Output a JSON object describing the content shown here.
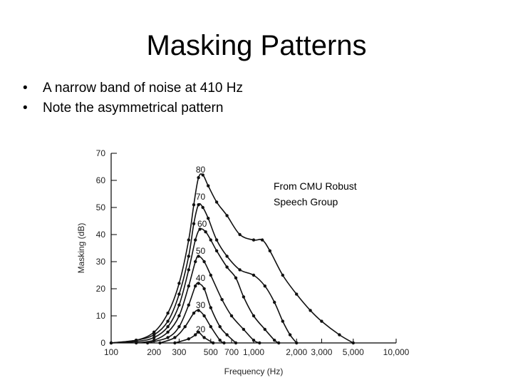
{
  "slide": {
    "title": "Masking Patterns",
    "bullets": [
      "A narrow band of noise at 410 Hz",
      "Note the asymmetrical pattern"
    ],
    "credit_lines": [
      "From CMU Robust",
      "Speech Group"
    ]
  },
  "chart_data": {
    "type": "line",
    "xlabel": "Frequency (Hz)",
    "ylabel": "Masking (dB)",
    "x_scale": "log",
    "xlim": [
      100,
      10000
    ],
    "ylim": [
      0,
      70
    ],
    "x_ticks": [
      100,
      200,
      300,
      500,
      700,
      1000,
      2000,
      3000,
      5000,
      10000
    ],
    "x_tick_labels": [
      "100",
      "200",
      "300",
      "500",
      "700",
      "1,000",
      "2,000",
      "3,000",
      "5,000",
      "10,000"
    ],
    "y_ticks": [
      0,
      10,
      20,
      30,
      40,
      50,
      60,
      70
    ],
    "y_tick_labels": [
      "0",
      "10",
      "20",
      "30",
      "40",
      "50",
      "60",
      "70"
    ],
    "grid": false,
    "series": [
      {
        "name": "80",
        "points": [
          [
            100,
            0
          ],
          [
            150,
            1
          ],
          [
            200,
            4
          ],
          [
            250,
            11
          ],
          [
            300,
            22
          ],
          [
            350,
            38
          ],
          [
            380,
            51
          ],
          [
            410,
            61
          ],
          [
            440,
            62
          ],
          [
            480,
            58
          ],
          [
            550,
            52
          ],
          [
            650,
            47
          ],
          [
            800,
            40
          ],
          [
            1000,
            38
          ],
          [
            1150,
            38
          ],
          [
            1300,
            34
          ],
          [
            1600,
            25
          ],
          [
            2000,
            18
          ],
          [
            2500,
            12
          ],
          [
            3000,
            8
          ],
          [
            4000,
            3
          ],
          [
            5000,
            0
          ]
        ]
      },
      {
        "name": "70",
        "points": [
          [
            100,
            0
          ],
          [
            150,
            1
          ],
          [
            200,
            3
          ],
          [
            250,
            8
          ],
          [
            300,
            18
          ],
          [
            350,
            32
          ],
          [
            380,
            44
          ],
          [
            410,
            51
          ],
          [
            440,
            50
          ],
          [
            480,
            46
          ],
          [
            550,
            38
          ],
          [
            650,
            32
          ],
          [
            800,
            27
          ],
          [
            1000,
            25
          ],
          [
            1200,
            21
          ],
          [
            1400,
            15
          ],
          [
            1600,
            8
          ],
          [
            1800,
            3
          ],
          [
            2000,
            0
          ]
        ]
      },
      {
        "name": "60",
        "points": [
          [
            100,
            0
          ],
          [
            150,
            0.5
          ],
          [
            200,
            2
          ],
          [
            250,
            6
          ],
          [
            300,
            14
          ],
          [
            350,
            27
          ],
          [
            390,
            38
          ],
          [
            420,
            42
          ],
          [
            460,
            41
          ],
          [
            500,
            38
          ],
          [
            550,
            34
          ],
          [
            650,
            28
          ],
          [
            750,
            24
          ],
          [
            850,
            17
          ],
          [
            1000,
            10
          ],
          [
            1200,
            5
          ],
          [
            1400,
            1
          ],
          [
            1500,
            0
          ]
        ]
      },
      {
        "name": "50",
        "points": [
          [
            150,
            0
          ],
          [
            200,
            1
          ],
          [
            250,
            4
          ],
          [
            300,
            10
          ],
          [
            350,
            21
          ],
          [
            390,
            30
          ],
          [
            410,
            32
          ],
          [
            450,
            30
          ],
          [
            500,
            25
          ],
          [
            600,
            16
          ],
          [
            700,
            10
          ],
          [
            850,
            5
          ],
          [
            1000,
            1
          ],
          [
            1100,
            0
          ]
        ]
      },
      {
        "name": "40",
        "points": [
          [
            180,
            0
          ],
          [
            250,
            2
          ],
          [
            300,
            6
          ],
          [
            350,
            14
          ],
          [
            390,
            21
          ],
          [
            410,
            22
          ],
          [
            450,
            20
          ],
          [
            500,
            13
          ],
          [
            580,
            6
          ],
          [
            650,
            3
          ],
          [
            750,
            0
          ]
        ]
      },
      {
        "name": "30",
        "points": [
          [
            220,
            0
          ],
          [
            280,
            2
          ],
          [
            330,
            6
          ],
          [
            380,
            11
          ],
          [
            410,
            12
          ],
          [
            450,
            10
          ],
          [
            500,
            6
          ],
          [
            580,
            1
          ],
          [
            620,
            0
          ]
        ]
      },
      {
        "name": "20",
        "points": [
          [
            280,
            0
          ],
          [
            350,
            1.5
          ],
          [
            390,
            3
          ],
          [
            410,
            4
          ],
          [
            450,
            2
          ],
          [
            520,
            0
          ]
        ]
      }
    ],
    "curve_labels": [
      {
        "text": "80",
        "x": 410,
        "y": 64
      },
      {
        "text": "70",
        "x": 410,
        "y": 54
      },
      {
        "text": "60",
        "x": 420,
        "y": 44
      },
      {
        "text": "50",
        "x": 410,
        "y": 34
      },
      {
        "text": "40",
        "x": 410,
        "y": 24
      },
      {
        "text": "30",
        "x": 410,
        "y": 14
      },
      {
        "text": "20",
        "x": 410,
        "y": 5
      }
    ]
  }
}
